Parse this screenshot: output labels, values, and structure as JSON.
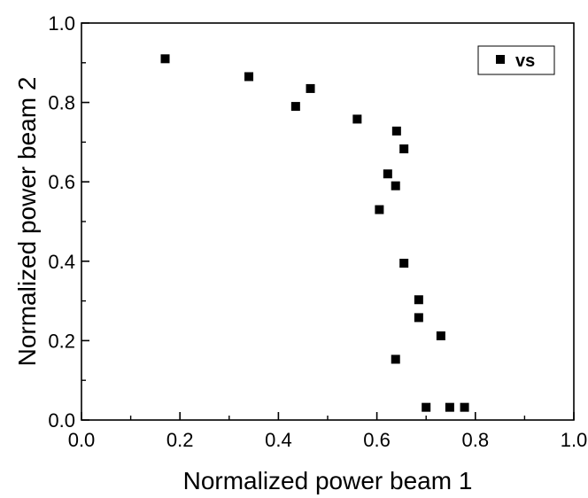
{
  "chart_data": {
    "type": "scatter",
    "title": "",
    "xlabel": "Normalized power beam 1",
    "ylabel": "Normalized power beam 2",
    "xlim": [
      0.0,
      1.0
    ],
    "ylim": [
      0.0,
      1.0
    ],
    "x_ticks": [
      "0.0",
      "0.2",
      "0.4",
      "0.6",
      "0.8",
      "1.0"
    ],
    "y_ticks": [
      "0.0",
      "0.2",
      "0.4",
      "0.6",
      "0.8",
      "1.0"
    ],
    "grid": false,
    "legend_position": "top-right",
    "series": [
      {
        "name": "vs",
        "marker": "square",
        "color": "#000000",
        "points": [
          {
            "x": 0.17,
            "y": 0.91
          },
          {
            "x": 0.34,
            "y": 0.865
          },
          {
            "x": 0.435,
            "y": 0.79
          },
          {
            "x": 0.465,
            "y": 0.835
          },
          {
            "x": 0.56,
            "y": 0.758
          },
          {
            "x": 0.64,
            "y": 0.728
          },
          {
            "x": 0.655,
            "y": 0.683
          },
          {
            "x": 0.622,
            "y": 0.62
          },
          {
            "x": 0.638,
            "y": 0.59
          },
          {
            "x": 0.605,
            "y": 0.53
          },
          {
            "x": 0.655,
            "y": 0.395
          },
          {
            "x": 0.685,
            "y": 0.303
          },
          {
            "x": 0.685,
            "y": 0.258
          },
          {
            "x": 0.73,
            "y": 0.212
          },
          {
            "x": 0.638,
            "y": 0.153
          },
          {
            "x": 0.7,
            "y": 0.032
          },
          {
            "x": 0.748,
            "y": 0.032
          },
          {
            "x": 0.778,
            "y": 0.032
          }
        ]
      }
    ]
  }
}
